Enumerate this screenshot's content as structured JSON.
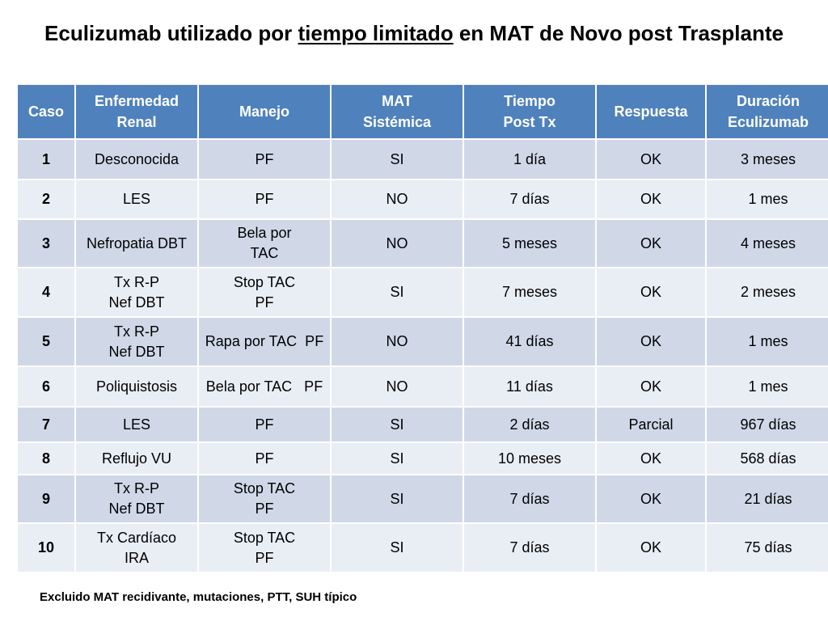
{
  "title": {
    "part1": "Eculizumab utilizado por ",
    "underlined": "tiempo limitado",
    "part2": " en MAT de Novo post Trasplante"
  },
  "table": {
    "headers": [
      [
        "Caso"
      ],
      [
        "Enfermedad",
        "Renal"
      ],
      [
        "Manejo"
      ],
      [
        "MAT",
        "Sistémica"
      ],
      [
        "Tiempo",
        "Post Tx"
      ],
      [
        "Respuesta"
      ],
      [
        "Duración",
        "Eculizumab"
      ]
    ],
    "rows": [
      {
        "caso": "1",
        "enfermedad": [
          "Desconocida"
        ],
        "manejo": [
          "PF"
        ],
        "mat": "SI",
        "tiempo": "1 día",
        "respuesta": "OK",
        "duracion": "3 meses"
      },
      {
        "caso": "2",
        "enfermedad": [
          "LES"
        ],
        "manejo": [
          "PF"
        ],
        "mat": "NO",
        "tiempo": "7 días",
        "respuesta": "OK",
        "duracion": "1 mes"
      },
      {
        "caso": "3",
        "enfermedad": [
          "Nefropatia DBT"
        ],
        "manejo": [
          "Bela por",
          "TAC"
        ],
        "mat": "NO",
        "tiempo": "5 meses",
        "respuesta": "OK",
        "duracion": "4 meses"
      },
      {
        "caso": "4",
        "enfermedad": [
          "Tx R-P",
          "Nef DBT"
        ],
        "manejo": [
          "Stop TAC",
          "PF"
        ],
        "mat": "SI",
        "tiempo": "7 meses",
        "respuesta": "OK",
        "duracion": "2 meses"
      },
      {
        "caso": "5",
        "enfermedad": [
          "Tx R-P",
          "Nef DBT"
        ],
        "manejo": [
          "Rapa por TAC  PF"
        ],
        "mat": "NO",
        "tiempo": "41 días",
        "respuesta": "OK",
        "duracion": "1 mes"
      },
      {
        "caso": "6",
        "enfermedad": [
          "Poliquistosis"
        ],
        "manejo": [
          "Bela por TAC   PF"
        ],
        "mat": "NO",
        "tiempo": "11 días",
        "respuesta": "OK",
        "duracion": "1 mes"
      },
      {
        "caso": "7",
        "enfermedad": [
          "LES"
        ],
        "manejo": [
          "PF"
        ],
        "mat": "SI",
        "tiempo": "2 días",
        "respuesta": "Parcial",
        "duracion": "967 días"
      },
      {
        "caso": "8",
        "enfermedad": [
          "Reflujo VU"
        ],
        "manejo": [
          "PF"
        ],
        "mat": "SI",
        "tiempo": "10 meses",
        "respuesta": "OK",
        "duracion": "568 días"
      },
      {
        "caso": "9",
        "enfermedad": [
          "Tx R-P",
          "Nef DBT"
        ],
        "manejo": [
          "Stop TAC",
          "PF"
        ],
        "mat": "SI",
        "tiempo": "7 días",
        "respuesta": "OK",
        "duracion": "21 días"
      },
      {
        "caso": "10",
        "enfermedad": [
          "Tx Cardíaco",
          "IRA"
        ],
        "manejo": [
          "Stop TAC",
          "PF"
        ],
        "mat": "SI",
        "tiempo": "7 días",
        "respuesta": "OK",
        "duracion": "75 días"
      }
    ]
  },
  "footnote": "Excluido MAT recidivante, mutaciones, PTT, SUH típico",
  "colors": {
    "header_bg": "#4f81bd",
    "row_dark": "#d0d8e8",
    "row_light": "#e9edf4"
  }
}
